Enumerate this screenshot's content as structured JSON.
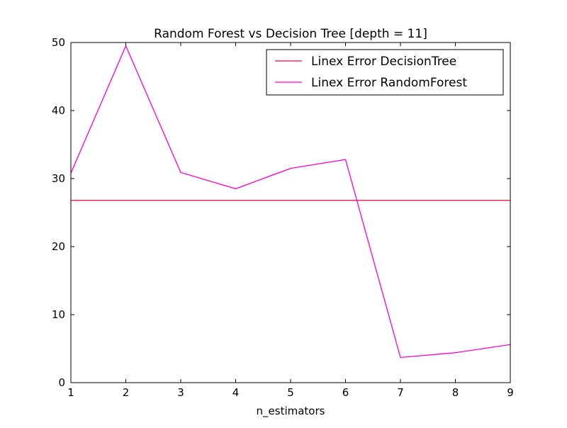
{
  "chart_data": {
    "type": "line",
    "title": "Random Forest vs Decision Tree [depth = 11]",
    "xlabel": "n_estimators",
    "ylabel": "",
    "xlim": [
      1,
      9
    ],
    "ylim": [
      0,
      50
    ],
    "xticks": [
      1,
      2,
      3,
      4,
      5,
      6,
      7,
      8,
      9
    ],
    "yticks": [
      0,
      10,
      20,
      30,
      40,
      50
    ],
    "grid": false,
    "legend_position": "top-right",
    "series": [
      {
        "name": "Linex Error DecisionTree",
        "color": "#ff0033",
        "x": [
          1,
          2,
          3,
          4,
          5,
          6,
          7,
          8,
          9
        ],
        "y": [
          26.8,
          26.8,
          26.8,
          26.8,
          26.8,
          26.8,
          26.8,
          26.8,
          26.8
        ]
      },
      {
        "name": "Linex Error RandomForest",
        "color": "#ff00cc",
        "x": [
          1,
          2,
          3,
          4,
          5,
          6,
          7,
          8,
          9
        ],
        "y": [
          30.8,
          49.5,
          30.9,
          28.5,
          31.5,
          32.8,
          3.7,
          4.4,
          5.6
        ]
      }
    ]
  }
}
